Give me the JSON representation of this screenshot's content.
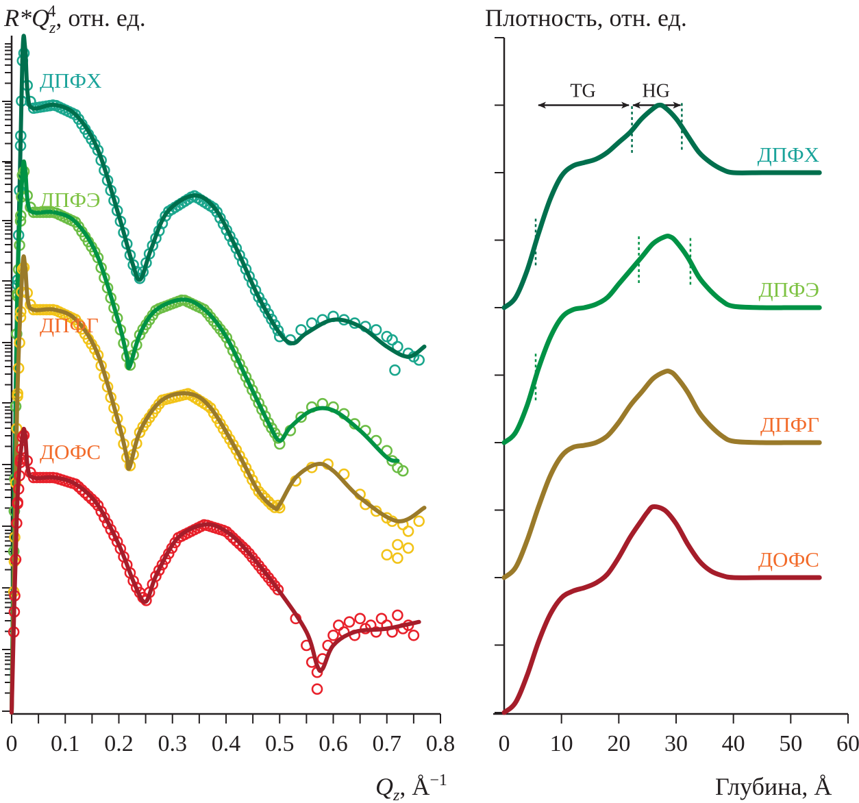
{
  "chart_data": [
    {
      "type": "scatter",
      "panel": "left",
      "title": "",
      "ylabel_parts": {
        "main": "R*Q",
        "sub": "z",
        "sup": "4",
        "suffix": ", отн. ед."
      },
      "xlabel_parts": {
        "main": "Q",
        "sub": "z",
        "suffix": ", Å",
        "sup": "−1"
      },
      "xlim": [
        0,
        0.8
      ],
      "x_ticks": [
        "0",
        "0.1",
        "0.2",
        "0.3",
        "0.4",
        "0.5",
        "0.6",
        "0.7",
        "0.8"
      ],
      "x_tick_values": [
        0,
        0.1,
        0.2,
        0.3,
        0.4,
        0.5,
        0.6,
        0.7,
        0.8
      ],
      "y_scale": "log (offset curves, relative units)",
      "ylim_rel": [
        0,
        1
      ],
      "grid": false,
      "legend": "inline labels",
      "series": [
        {
          "name": "ДПФХ",
          "marker_color": "#1aa68d",
          "line_color": "#006f4d",
          "label_color": "#1aa39a",
          "fit": [
            [
              0.0,
              0.0
            ],
            [
              0.01,
              0.6
            ],
            [
              0.02,
              0.97
            ],
            [
              0.025,
              0.99
            ],
            [
              0.03,
              0.92
            ],
            [
              0.04,
              0.9
            ],
            [
              0.08,
              0.905
            ],
            [
              0.12,
              0.89
            ],
            [
              0.16,
              0.84
            ],
            [
              0.2,
              0.74
            ],
            [
              0.225,
              0.67
            ],
            [
              0.24,
              0.645
            ],
            [
              0.26,
              0.69
            ],
            [
              0.29,
              0.745
            ],
            [
              0.34,
              0.77
            ],
            [
              0.38,
              0.75
            ],
            [
              0.42,
              0.69
            ],
            [
              0.46,
              0.62
            ],
            [
              0.5,
              0.565
            ],
            [
              0.525,
              0.55
            ],
            [
              0.55,
              0.565
            ],
            [
              0.6,
              0.585
            ],
            [
              0.65,
              0.575
            ],
            [
              0.7,
              0.545
            ],
            [
              0.74,
              0.53
            ],
            [
              0.77,
              0.545
            ]
          ],
          "scatter_extra": [
            [
              0.5,
              0.56
            ],
            [
              0.52,
              0.555
            ],
            [
              0.54,
              0.57
            ],
            [
              0.56,
              0.58
            ],
            [
              0.58,
              0.585
            ],
            [
              0.6,
              0.59
            ],
            [
              0.62,
              0.585
            ],
            [
              0.64,
              0.58
            ],
            [
              0.66,
              0.575
            ],
            [
              0.68,
              0.57
            ],
            [
              0.7,
              0.56
            ],
            [
              0.71,
              0.555
            ],
            [
              0.72,
              0.545
            ],
            [
              0.74,
              0.535
            ],
            [
              0.75,
              0.53
            ],
            [
              0.76,
              0.525
            ],
            [
              0.715,
              0.51
            ]
          ]
        },
        {
          "name": "ДПФЭ",
          "marker_color": "#6cbd45",
          "line_color": "#009245",
          "label_color": "#7dc242",
          "fit": [
            [
              0.0,
              0.0
            ],
            [
              0.01,
              0.6
            ],
            [
              0.02,
              0.8
            ],
            [
              0.025,
              0.81
            ],
            [
              0.03,
              0.76
            ],
            [
              0.04,
              0.745
            ],
            [
              0.08,
              0.745
            ],
            [
              0.12,
              0.73
            ],
            [
              0.16,
              0.68
            ],
            [
              0.2,
              0.58
            ],
            [
              0.215,
              0.53
            ],
            [
              0.22,
              0.515
            ],
            [
              0.24,
              0.565
            ],
            [
              0.27,
              0.6
            ],
            [
              0.32,
              0.615
            ],
            [
              0.36,
              0.6
            ],
            [
              0.4,
              0.56
            ],
            [
              0.44,
              0.495
            ],
            [
              0.48,
              0.43
            ],
            [
              0.5,
              0.405
            ],
            [
              0.52,
              0.425
            ],
            [
              0.56,
              0.45
            ],
            [
              0.6,
              0.45
            ],
            [
              0.65,
              0.42
            ],
            [
              0.7,
              0.38
            ],
            [
              0.72,
              0.375
            ]
          ],
          "scatter_extra": [
            [
              0.5,
              0.4
            ],
            [
              0.52,
              0.42
            ],
            [
              0.54,
              0.44
            ],
            [
              0.56,
              0.455
            ],
            [
              0.58,
              0.46
            ],
            [
              0.6,
              0.455
            ],
            [
              0.62,
              0.445
            ],
            [
              0.64,
              0.43
            ],
            [
              0.66,
              0.42
            ],
            [
              0.68,
              0.405
            ],
            [
              0.7,
              0.39
            ],
            [
              0.71,
              0.375
            ],
            [
              0.72,
              0.365
            ],
            [
              0.73,
              0.36
            ]
          ]
        },
        {
          "name": "ДПФГ",
          "marker_color": "#f2c318",
          "line_color": "#9a7a2a",
          "label_color": "#f26b2a",
          "fit": [
            [
              0.0,
              0.0
            ],
            [
              0.01,
              0.45
            ],
            [
              0.02,
              0.66
            ],
            [
              0.025,
              0.665
            ],
            [
              0.03,
              0.615
            ],
            [
              0.04,
              0.6
            ],
            [
              0.08,
              0.6
            ],
            [
              0.12,
              0.585
            ],
            [
              0.16,
              0.535
            ],
            [
              0.2,
              0.43
            ],
            [
              0.215,
              0.38
            ],
            [
              0.22,
              0.365
            ],
            [
              0.24,
              0.42
            ],
            [
              0.28,
              0.465
            ],
            [
              0.33,
              0.475
            ],
            [
              0.37,
              0.455
            ],
            [
              0.42,
              0.39
            ],
            [
              0.46,
              0.33
            ],
            [
              0.49,
              0.305
            ],
            [
              0.5,
              0.31
            ],
            [
              0.53,
              0.35
            ],
            [
              0.57,
              0.37
            ],
            [
              0.6,
              0.36
            ],
            [
              0.65,
              0.32
            ],
            [
              0.72,
              0.285
            ],
            [
              0.77,
              0.305
            ]
          ],
          "scatter_extra": [
            [
              0.5,
              0.305
            ],
            [
              0.53,
              0.345
            ],
            [
              0.56,
              0.365
            ],
            [
              0.59,
              0.37
            ],
            [
              0.62,
              0.355
            ],
            [
              0.65,
              0.325
            ],
            [
              0.66,
              0.31
            ],
            [
              0.68,
              0.3
            ],
            [
              0.7,
              0.29
            ],
            [
              0.71,
              0.285
            ],
            [
              0.73,
              0.28
            ],
            [
              0.74,
              0.27
            ],
            [
              0.76,
              0.285
            ],
            [
              0.72,
              0.25
            ],
            [
              0.74,
              0.245
            ],
            [
              0.7,
              0.235
            ],
            [
              0.72,
              0.23
            ]
          ]
        },
        {
          "name": "ДОФС",
          "marker_color": "#e8202a",
          "line_color": "#a51d2a",
          "label_color": "#f26b2a",
          "fit": [
            [
              0.0,
              0.0
            ],
            [
              0.01,
              0.3
            ],
            [
              0.02,
              0.41
            ],
            [
              0.025,
              0.415
            ],
            [
              0.03,
              0.365
            ],
            [
              0.04,
              0.35
            ],
            [
              0.08,
              0.35
            ],
            [
              0.12,
              0.34
            ],
            [
              0.16,
              0.31
            ],
            [
              0.2,
              0.25
            ],
            [
              0.23,
              0.19
            ],
            [
              0.25,
              0.165
            ],
            [
              0.27,
              0.205
            ],
            [
              0.31,
              0.26
            ],
            [
              0.36,
              0.28
            ],
            [
              0.4,
              0.27
            ],
            [
              0.44,
              0.24
            ],
            [
              0.5,
              0.18
            ],
            [
              0.55,
              0.12
            ],
            [
              0.57,
              0.07
            ],
            [
              0.58,
              0.065
            ],
            [
              0.6,
              0.1
            ],
            [
              0.64,
              0.12
            ],
            [
              0.7,
              0.125
            ],
            [
              0.76,
              0.135
            ]
          ],
          "scatter_extra": [
            [
              0.53,
              0.14
            ],
            [
              0.55,
              0.1
            ],
            [
              0.56,
              0.075
            ],
            [
              0.57,
              0.06
            ],
            [
              0.58,
              0.08
            ],
            [
              0.59,
              0.1
            ],
            [
              0.6,
              0.115
            ],
            [
              0.61,
              0.13
            ],
            [
              0.62,
              0.12
            ],
            [
              0.63,
              0.135
            ],
            [
              0.64,
              0.115
            ],
            [
              0.65,
              0.14
            ],
            [
              0.66,
              0.125
            ],
            [
              0.67,
              0.13
            ],
            [
              0.68,
              0.12
            ],
            [
              0.69,
              0.14
            ],
            [
              0.7,
              0.13
            ],
            [
              0.71,
              0.12
            ],
            [
              0.72,
              0.145
            ],
            [
              0.73,
              0.125
            ],
            [
              0.74,
              0.13
            ],
            [
              0.75,
              0.115
            ],
            [
              0.57,
              0.035
            ]
          ]
        }
      ]
    },
    {
      "type": "line",
      "panel": "right",
      "title": "",
      "ylabel": "Плотность, отн. ед.",
      "xlabel": "Глубина, Å",
      "xlim": [
        0,
        60
      ],
      "x_ticks": [
        "0",
        "10",
        "20",
        "30",
        "40",
        "50",
        "60"
      ],
      "x_tick_values": [
        0,
        10,
        20,
        30,
        40,
        50,
        60
      ],
      "ylim": [
        0,
        10
      ],
      "y_tick_count": 11,
      "grid": false,
      "legend": "inline labels, right",
      "annotations": [
        {
          "text": "TG",
          "type": "double-arrow",
          "x_from": 5.5,
          "x_to": 22
        },
        {
          "text": "HG",
          "type": "double-arrow",
          "x_from": 22,
          "x_to": 31
        }
      ],
      "dashed_markers": [
        {
          "series": "ДПФХ",
          "x": [
            5.5,
            22.3,
            31
          ]
        },
        {
          "series": "ДПФЭ",
          "x": [
            5.5,
            23.5,
            32.5
          ]
        }
      ],
      "series": [
        {
          "name": "ДПФХ",
          "line_color": "#006f4d",
          "label_color": "#1aa39a",
          "offset": 6,
          "x": [
            0,
            2,
            4,
            6,
            8,
            10,
            12,
            14,
            16,
            18,
            20,
            22,
            24,
            26,
            27,
            28,
            30,
            32,
            34,
            36,
            38,
            40,
            45,
            50,
            55
          ],
          "y": [
            0,
            0.15,
            0.55,
            1.1,
            1.6,
            1.95,
            2.1,
            2.15,
            2.2,
            2.3,
            2.45,
            2.6,
            2.8,
            2.95,
            3.0,
            2.97,
            2.8,
            2.55,
            2.3,
            2.15,
            2.05,
            2.0,
            2.0,
            2.0,
            2.0
          ]
        },
        {
          "name": "ДПФЭ",
          "line_color": "#009245",
          "label_color": "#7dc242",
          "offset": 4,
          "x": [
            0,
            2,
            4,
            6,
            8,
            10,
            12,
            14,
            16,
            18,
            20,
            22,
            24,
            26,
            28,
            29,
            30,
            32,
            34,
            36,
            38,
            40,
            45,
            50,
            55
          ],
          "y": [
            0,
            0.15,
            0.55,
            1.1,
            1.55,
            1.85,
            1.97,
            2.0,
            2.05,
            2.15,
            2.35,
            2.55,
            2.75,
            2.95,
            3.05,
            3.05,
            2.98,
            2.75,
            2.45,
            2.25,
            2.1,
            2.02,
            2.0,
            2.0,
            2.0
          ]
        },
        {
          "name": "ДПФГ",
          "line_color": "#9a7a2a",
          "label_color": "#f26b2a",
          "offset": 2,
          "x": [
            0,
            2,
            4,
            6,
            8,
            10,
            12,
            14,
            16,
            18,
            20,
            22,
            24,
            26,
            28,
            29,
            30,
            32,
            34,
            36,
            38,
            40,
            45,
            50,
            55
          ],
          "y": [
            0,
            0.15,
            0.55,
            1.05,
            1.5,
            1.8,
            1.93,
            1.96,
            2.0,
            2.1,
            2.3,
            2.55,
            2.75,
            2.95,
            3.05,
            3.05,
            2.98,
            2.75,
            2.45,
            2.25,
            2.1,
            2.02,
            2.0,
            2.0,
            2.0
          ]
        },
        {
          "name": "ДОФС",
          "line_color": "#a51d2a",
          "label_color": "#f26b2a",
          "offset": 0,
          "x": [
            0,
            2,
            4,
            6,
            8,
            10,
            12,
            14,
            16,
            18,
            20,
            22,
            24,
            25,
            26,
            28,
            30,
            32,
            34,
            36,
            38,
            40,
            45,
            50,
            55
          ],
          "y": [
            0,
            0.15,
            0.55,
            1.05,
            1.45,
            1.7,
            1.8,
            1.85,
            1.92,
            2.05,
            2.3,
            2.6,
            2.85,
            2.97,
            3.05,
            3.0,
            2.8,
            2.5,
            2.25,
            2.1,
            2.03,
            2.0,
            2.0,
            2.0,
            2.0
          ]
        }
      ]
    }
  ]
}
